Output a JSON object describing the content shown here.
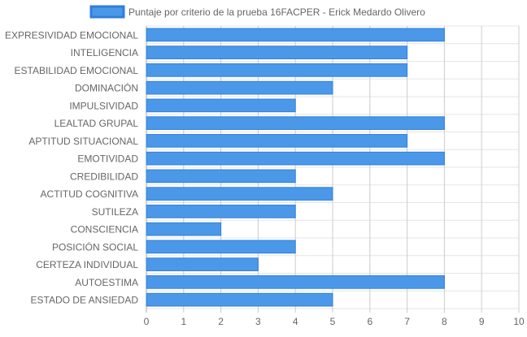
{
  "chart_data": {
    "type": "bar",
    "orientation": "horizontal",
    "categories": [
      "EXPRESIVIDAD EMOCIONAL",
      "INTELIGENCIA",
      "ESTABILIDAD EMOCIONAL",
      "DOMINACIÓN",
      "IMPULSIVIDAD",
      "LEALTAD GRUPAL",
      "APTITUD SITUACIONAL",
      "EMOTIVIDAD",
      "CREDIBILIDAD",
      "ACTITUD COGNITIVA",
      "SUTILEZA",
      "CONSCIENCIA",
      "POSICIÓN SOCIAL",
      "CERTEZA INDIVIDUAL",
      "AUTOESTIMA",
      "ESTADO DE ANSIEDAD"
    ],
    "series": [
      {
        "name": "Puntaje por criterio de la prueba 16FACPER - Erick Medardo Olivero",
        "values": [
          8,
          7,
          7,
          5,
          4,
          8,
          7,
          8,
          4,
          5,
          4,
          2,
          4,
          3,
          8,
          5
        ],
        "color": "#4c98e8",
        "border_color": "#2f7fdc"
      }
    ],
    "xlim": [
      0,
      10
    ],
    "x_ticks": [
      0,
      1,
      2,
      3,
      4,
      5,
      6,
      7,
      8,
      9,
      10
    ],
    "title": "",
    "xlabel": "",
    "ylabel": "",
    "grid": true,
    "legend_position": "top-center"
  }
}
